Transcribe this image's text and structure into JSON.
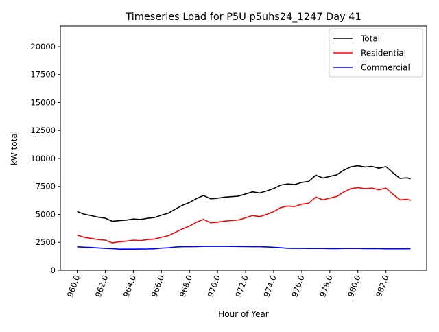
{
  "chart_data": {
    "type": "line",
    "title": "Timeseries Load for P5U p5uhs24_1247  Day 41",
    "xlabel": "Hour of Year",
    "ylabel": "kW total",
    "xlim": [
      958.8,
      984.9
    ],
    "ylim": [
      0,
      21840
    ],
    "grid": false,
    "legend_position": "top-right",
    "xticks": [
      960,
      962,
      964,
      966,
      968,
      970,
      972,
      974,
      976,
      978,
      980,
      982
    ],
    "xtick_labels": [
      "960.0",
      "962.0",
      "964.0",
      "966.0",
      "968.0",
      "970.0",
      "972.0",
      "974.0",
      "976.0",
      "978.0",
      "980.0",
      "982.0"
    ],
    "yticks": [
      0,
      2500,
      5000,
      7500,
      10000,
      12500,
      15000,
      17500,
      20000
    ],
    "ytick_labels": [
      "0",
      "2500",
      "5000",
      "7500",
      "10000",
      "12500",
      "15000",
      "17500",
      "20000"
    ],
    "x": [
      960,
      960.5,
      961,
      961.5,
      962,
      962.5,
      963,
      963.5,
      964,
      964.5,
      965,
      965.5,
      966,
      966.5,
      967,
      967.5,
      968,
      968.5,
      969,
      969.5,
      970,
      970.5,
      971,
      971.5,
      972,
      972.5,
      973,
      973.5,
      974,
      974.5,
      975,
      975.5,
      976,
      976.5,
      977,
      977.5,
      978,
      978.5,
      979,
      979.5,
      980,
      980.5,
      981,
      981.5,
      982,
      982.5,
      983,
      983.5,
      983.75
    ],
    "series": [
      {
        "name": "Total",
        "color": "#000000",
        "values": [
          5250,
          5020,
          4890,
          4750,
          4660,
          4380,
          4440,
          4490,
          4590,
          4545,
          4650,
          4720,
          4930,
          5110,
          5480,
          5810,
          6060,
          6420,
          6690,
          6390,
          6440,
          6540,
          6585,
          6630,
          6820,
          7010,
          6910,
          7090,
          7310,
          7620,
          7720,
          7660,
          7860,
          7950,
          8500,
          8250,
          8390,
          8540,
          8950,
          9250,
          9350,
          9240,
          9290,
          9130,
          9270,
          8720,
          8220,
          8270,
          8180
        ]
      },
      {
        "name": "Residential",
        "color": "#ff0000",
        "values": [
          3150,
          2950,
          2850,
          2750,
          2700,
          2450,
          2550,
          2600,
          2700,
          2650,
          2750,
          2800,
          2950,
          3100,
          3400,
          3700,
          3950,
          4300,
          4550,
          4250,
          4300,
          4400,
          4450,
          4500,
          4700,
          4900,
          4800,
          5000,
          5250,
          5600,
          5750,
          5700,
          5900,
          6000,
          6550,
          6300,
          6450,
          6600,
          7000,
          7300,
          7400,
          7300,
          7350,
          7200,
          7350,
          6800,
          6300,
          6350,
          6250
        ]
      },
      {
        "name": "Commercial",
        "color": "#0000ff",
        "values": [
          2100,
          2070,
          2040,
          2000,
          1960,
          1930,
          1890,
          1890,
          1890,
          1895,
          1900,
          1920,
          1980,
          2010,
          2080,
          2110,
          2110,
          2120,
          2140,
          2140,
          2140,
          2140,
          2135,
          2130,
          2120,
          2110,
          2110,
          2090,
          2060,
          2020,
          1970,
          1960,
          1960,
          1950,
          1950,
          1950,
          1940,
          1940,
          1950,
          1950,
          1950,
          1940,
          1940,
          1930,
          1920,
          1920,
          1920,
          1920,
          1930
        ]
      }
    ]
  }
}
